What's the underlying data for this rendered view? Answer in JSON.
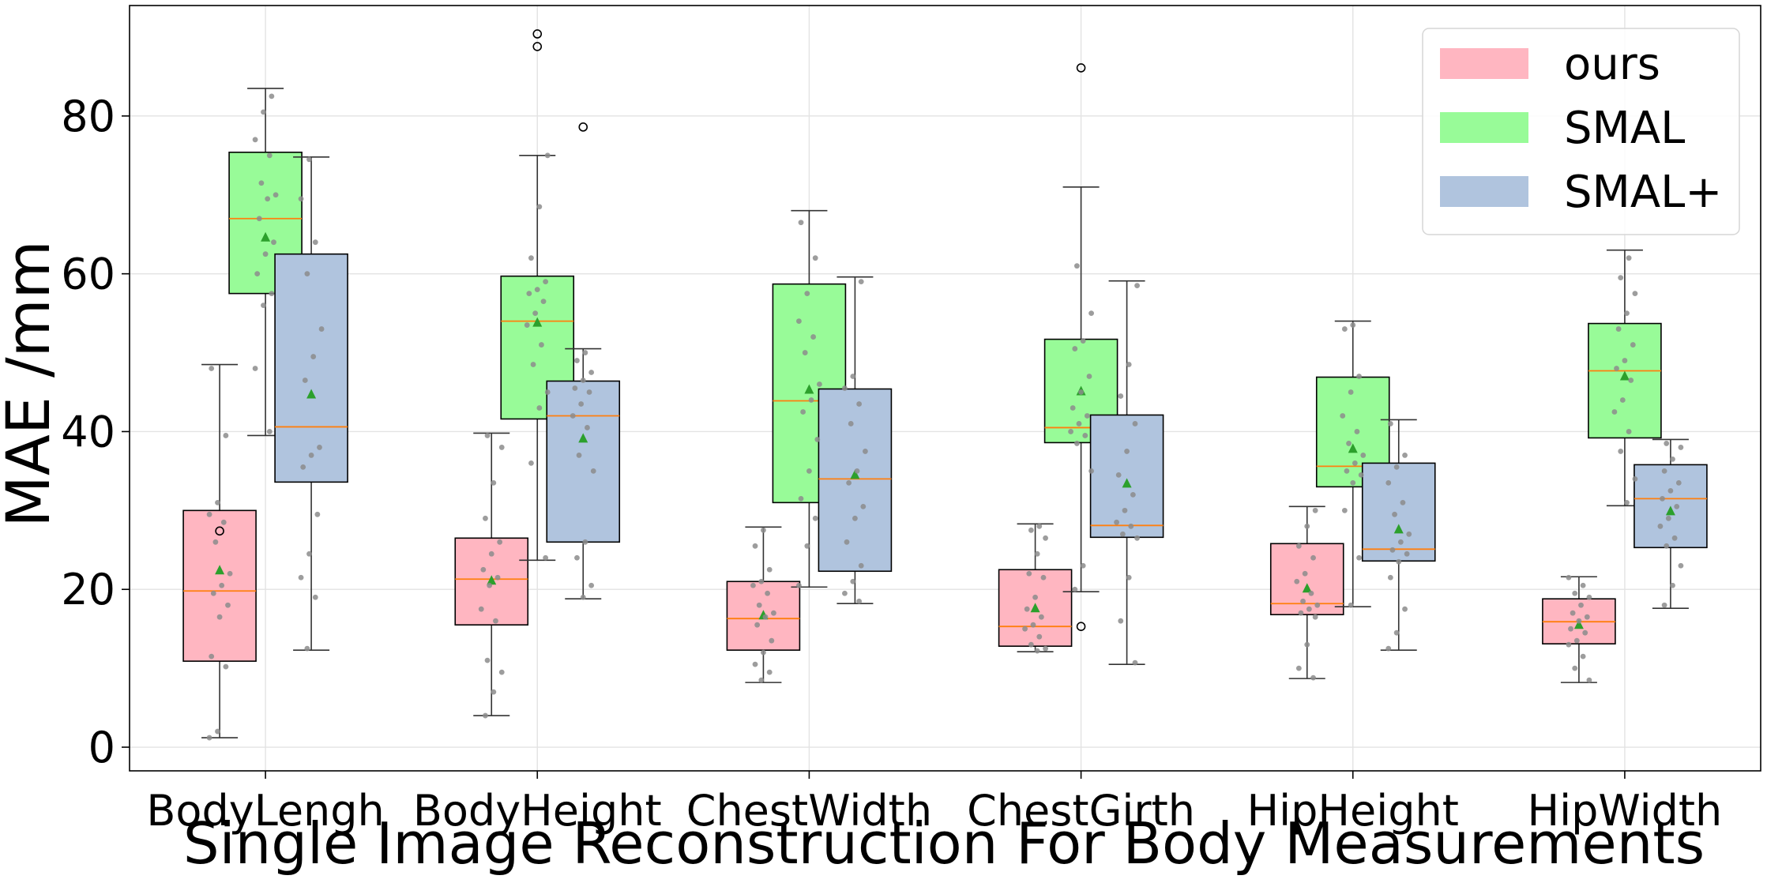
{
  "chart_data": {
    "type": "box",
    "title": "",
    "xlabel": "Single Image Reconstruction For Body Measurements",
    "ylabel": "MAE /mm",
    "ylim": [
      -3,
      94
    ],
    "yticks": [
      0,
      20,
      40,
      60,
      80
    ],
    "grid": true,
    "legend_position": "top-right",
    "categories": [
      "BodyLengh",
      "BodyHeight",
      "ChestWidth",
      "ChestGirth",
      "HipHeight",
      "HipWidth"
    ],
    "series": [
      {
        "name": "ours",
        "color": "#ffb6c1",
        "boxes": [
          {
            "whislo": 1.2,
            "q1": 10.9,
            "med": 19.8,
            "q3": 30.0,
            "whishi": 48.5,
            "mean": 22.4,
            "fliers": [
              27.4
            ],
            "points": [
              1.2,
              2.0,
              10.2,
              11.5,
              16.5,
              18.0,
              19.5,
              20.5,
              22.0,
              26.0,
              28.5,
              29.5,
              31.0,
              39.5,
              48.0
            ]
          },
          {
            "whislo": 4.0,
            "q1": 15.5,
            "med": 21.3,
            "q3": 26.5,
            "whishi": 39.8,
            "mean": 21.1,
            "fliers": [],
            "points": [
              4.0,
              7.0,
              9.5,
              11.0,
              16.0,
              17.5,
              20.5,
              21.5,
              22.5,
              24.5,
              26.0,
              29.0,
              33.5,
              38.0,
              39.5
            ]
          },
          {
            "whislo": 8.2,
            "q1": 12.3,
            "med": 16.3,
            "q3": 21.0,
            "whishi": 27.9,
            "mean": 16.7,
            "fliers": [],
            "points": [
              8.5,
              9.5,
              10.5,
              12.0,
              13.5,
              15.5,
              16.5,
              17.0,
              18.0,
              19.5,
              20.5,
              21.0,
              22.5,
              25.5,
              27.5
            ]
          },
          {
            "whislo": 12.1,
            "q1": 12.8,
            "med": 15.3,
            "q3": 22.5,
            "whishi": 28.3,
            "mean": 17.6,
            "fliers": [],
            "points": [
              12.2,
              12.5,
              13.0,
              14.0,
              15.0,
              15.5,
              16.5,
              17.5,
              19.0,
              21.5,
              22.0,
              24.5,
              26.5,
              27.5,
              28.0
            ]
          },
          {
            "whislo": 8.7,
            "q1": 16.8,
            "med": 18.2,
            "q3": 25.8,
            "whishi": 30.5,
            "mean": 20.1,
            "fliers": [],
            "points": [
              8.8,
              10.0,
              13.0,
              16.5,
              17.0,
              17.5,
              18.0,
              18.5,
              19.5,
              21.0,
              22.0,
              24.0,
              25.5,
              28.0,
              30.0
            ]
          },
          {
            "whislo": 8.2,
            "q1": 13.1,
            "med": 15.9,
            "q3": 18.8,
            "whishi": 21.6,
            "mean": 15.5,
            "fliers": [],
            "points": [
              8.5,
              10.0,
              11.5,
              13.0,
              13.5,
              14.5,
              15.0,
              16.0,
              16.5,
              17.0,
              18.0,
              19.0,
              19.5,
              20.5,
              21.5
            ]
          }
        ]
      },
      {
        "name": "SMAL",
        "color": "#98fb98",
        "boxes": [
          {
            "whislo": 39.5,
            "q1": 57.5,
            "med": 67.0,
            "q3": 75.4,
            "whishi": 83.5,
            "mean": 64.6,
            "fliers": [],
            "points": [
              40.0,
              48.0,
              56.0,
              57.5,
              60.0,
              62.5,
              64.0,
              67.0,
              69.5,
              70.0,
              71.5,
              75.0,
              77.0,
              80.5,
              82.5
            ]
          },
          {
            "whislo": 23.7,
            "q1": 41.6,
            "med": 54.0,
            "q3": 59.7,
            "whishi": 75.0,
            "mean": 53.8,
            "fliers": [
              88.8,
              90.4
            ],
            "points": [
              24.0,
              36.0,
              43.0,
              45.0,
              48.5,
              51.0,
              53.5,
              55.0,
              56.5,
              57.5,
              58.0,
              59.0,
              62.0,
              68.5,
              75.0
            ]
          },
          {
            "whislo": 20.3,
            "q1": 31.0,
            "med": 43.9,
            "q3": 58.7,
            "whishi": 68.0,
            "mean": 45.3,
            "fliers": [],
            "points": [
              20.5,
              25.5,
              29.0,
              31.5,
              35.0,
              39.0,
              42.5,
              44.0,
              46.0,
              50.0,
              52.0,
              54.0,
              57.5,
              62.0,
              66.5
            ]
          },
          {
            "whislo": 19.7,
            "q1": 38.6,
            "med": 40.5,
            "q3": 51.7,
            "whishi": 71.0,
            "mean": 45.1,
            "fliers": [
              15.3,
              86.1
            ],
            "points": [
              20.0,
              23.0,
              35.0,
              38.5,
              39.5,
              40.0,
              41.0,
              42.0,
              43.0,
              45.0,
              47.0,
              50.5,
              51.5,
              55.0,
              61.0
            ]
          },
          {
            "whislo": 17.8,
            "q1": 33.0,
            "med": 35.6,
            "q3": 46.9,
            "whishi": 54.0,
            "mean": 37.8,
            "fliers": [],
            "points": [
              18.0,
              24.0,
              30.0,
              33.5,
              34.5,
              35.0,
              36.0,
              37.0,
              38.5,
              40.0,
              42.0,
              45.0,
              47.0,
              53.0,
              53.5
            ]
          },
          {
            "whislo": 30.6,
            "q1": 39.2,
            "med": 47.7,
            "q3": 53.7,
            "whishi": 63.0,
            "mean": 47.0,
            "fliers": [],
            "points": [
              31.0,
              34.0,
              37.5,
              40.0,
              42.5,
              44.0,
              46.5,
              48.0,
              49.0,
              51.0,
              53.0,
              55.0,
              57.5,
              59.5,
              62.0
            ]
          }
        ]
      },
      {
        "name": "SMAL+",
        "color": "#b0c4de",
        "boxes": [
          {
            "whislo": 12.3,
            "q1": 33.6,
            "med": 40.6,
            "q3": 62.5,
            "whishi": 74.8,
            "mean": 44.7,
            "fliers": [],
            "points": [
              12.5,
              19.0,
              21.5,
              24.5,
              29.5,
              35.5,
              37.0,
              38.0,
              46.5,
              49.5,
              53.0,
              60.0,
              64.0,
              69.5,
              74.5
            ]
          },
          {
            "whislo": 18.8,
            "q1": 26.0,
            "med": 42.0,
            "q3": 46.4,
            "whishi": 50.5,
            "mean": 39.1,
            "fliers": [
              78.6
            ],
            "points": [
              19.0,
              20.5,
              24.0,
              26.0,
              35.0,
              37.0,
              40.5,
              42.0,
              43.5,
              45.0,
              45.5,
              46.5,
              47.5,
              49.0,
              50.0
            ]
          },
          {
            "whislo": 18.2,
            "q1": 22.3,
            "med": 34.0,
            "q3": 45.4,
            "whishi": 59.6,
            "mean": 34.5,
            "fliers": [],
            "points": [
              18.5,
              19.5,
              21.0,
              23.0,
              26.0,
              29.0,
              30.5,
              33.5,
              35.0,
              37.5,
              41.0,
              43.5,
              45.5,
              47.0,
              59.0
            ]
          },
          {
            "whislo": 10.5,
            "q1": 26.6,
            "med": 28.1,
            "q3": 42.1,
            "whishi": 59.1,
            "mean": 33.4,
            "fliers": [],
            "points": [
              10.7,
              16.0,
              21.5,
              26.5,
              27.0,
              28.0,
              28.5,
              30.0,
              32.0,
              34.5,
              37.5,
              41.0,
              44.5,
              48.5,
              58.5
            ]
          },
          {
            "whislo": 12.3,
            "q1": 23.6,
            "med": 25.1,
            "q3": 36.0,
            "whishi": 41.5,
            "mean": 27.6,
            "fliers": [],
            "points": [
              12.5,
              14.5,
              17.5,
              21.5,
              23.5,
              24.5,
              25.0,
              26.0,
              27.0,
              29.5,
              31.0,
              33.5,
              35.5,
              37.0,
              41.0
            ]
          },
          {
            "whislo": 17.6,
            "q1": 25.3,
            "med": 31.5,
            "q3": 35.8,
            "whishi": 39.0,
            "mean": 29.9,
            "fliers": [],
            "points": [
              18.0,
              20.5,
              23.0,
              25.5,
              26.5,
              28.0,
              29.0,
              30.5,
              31.5,
              32.5,
              33.5,
              35.0,
              36.5,
              38.0,
              38.5
            ]
          }
        ]
      }
    ]
  }
}
